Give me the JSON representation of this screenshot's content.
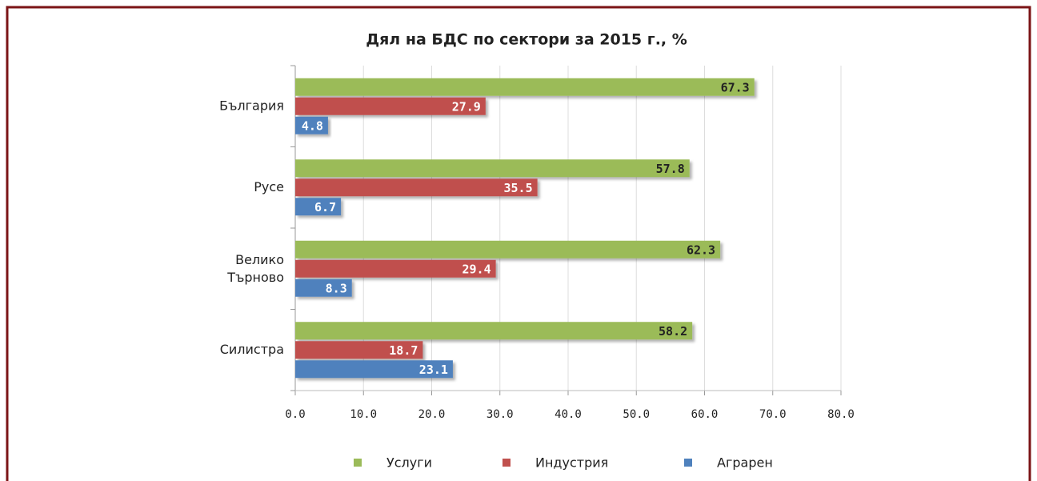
{
  "chart_data": {
    "type": "hbar",
    "title": "Дял на БДС по сектори за 2015 г., %",
    "categories": [
      "България",
      "Русе",
      "Велико Търново",
      "Силистра"
    ],
    "series": [
      {
        "name": "Услуги",
        "color": "#9bbb59",
        "values": [
          67.3,
          57.8,
          62.3,
          58.2
        ]
      },
      {
        "name": "Индустрия",
        "color": "#c0504d",
        "values": [
          27.9,
          35.5,
          29.4,
          18.7
        ]
      },
      {
        "name": "Аграрен",
        "color": "#4f81bd",
        "values": [
          4.8,
          6.7,
          8.3,
          23.1
        ]
      }
    ],
    "xlim": [
      0,
      80
    ],
    "xticks": [
      {
        "value": 0,
        "label": "0.0"
      },
      {
        "value": 10,
        "label": "10.0"
      },
      {
        "value": 20,
        "label": "20.0"
      },
      {
        "value": 30,
        "label": "30.0"
      },
      {
        "value": 40,
        "label": "40.0"
      },
      {
        "value": 50,
        "label": "50.0"
      },
      {
        "value": 60,
        "label": "60.0"
      },
      {
        "value": 70,
        "label": "70.0"
      },
      {
        "value": 80,
        "label": "80.0"
      }
    ],
    "grid": true,
    "legend": "bottom"
  }
}
